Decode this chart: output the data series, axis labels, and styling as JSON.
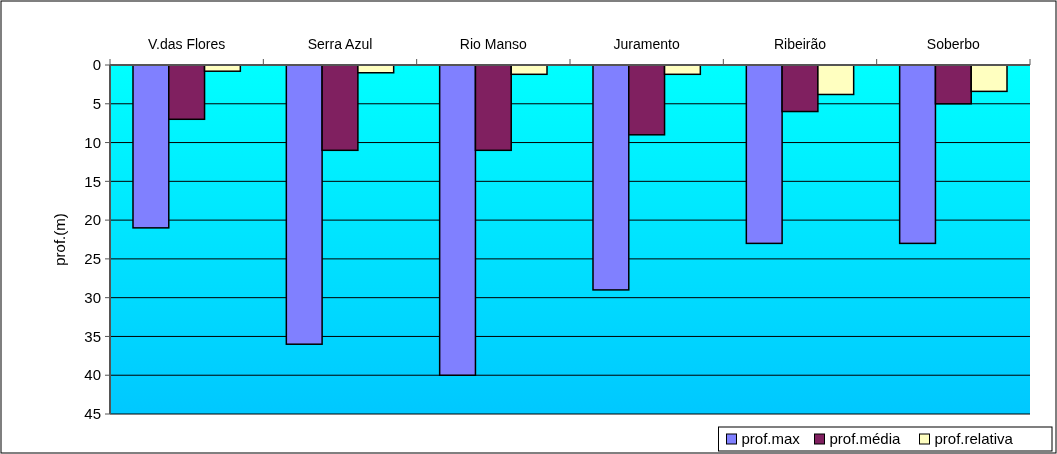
{
  "chart_data": {
    "type": "bar",
    "ylabel": "prof.(m)",
    "categories": [
      "V.das Flores",
      "Serra Azul",
      "Rio Manso",
      "Juramento",
      "Ribeirão",
      "Soberbo"
    ],
    "series": [
      {
        "name": "prof.max",
        "color": "#8080ff",
        "values": [
          21,
          36,
          40,
          29,
          23,
          23
        ]
      },
      {
        "name": "prof.média",
        "color": "#802060",
        "values": [
          7,
          11,
          11,
          9,
          6,
          5
        ]
      },
      {
        "name": "prof.relativa",
        "color": "#ffffc0",
        "values": [
          0.8,
          1,
          1.2,
          1.2,
          3.8,
          3.4
        ]
      }
    ],
    "ylim": [
      45,
      0
    ],
    "yticks": [
      0,
      5,
      10,
      15,
      20,
      25,
      30,
      35,
      40,
      45
    ],
    "grid": "y",
    "legend": "bottom right"
  }
}
